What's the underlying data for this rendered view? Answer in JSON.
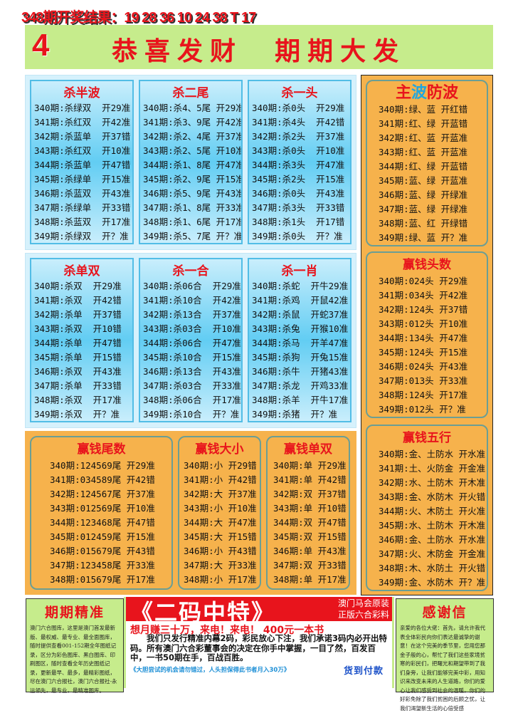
{
  "header": {
    "result_line": "348期开奖结果：19 28 36 10 24 38 T 17"
  },
  "banner": {
    "number": "4",
    "title": "恭喜发财  期期大发"
  },
  "colors": {
    "red": "#e8141c",
    "blue_panel": "#62cdf3",
    "orange": "#f6b24c",
    "green": "#c6ec8c",
    "title_blue": "#1fa6e0"
  },
  "blue_sections": [
    {
      "panels": [
        {
          "title": "杀半波",
          "rows": [
            "340期:杀绿双  开29准",
            "341期:杀红双  开42准",
            "342期:杀蓝单  开37错",
            "343期:杀红双  开10准",
            "344期:杀蓝单  开47错",
            "345期:杀绿单  开15准",
            "346期:杀蓝双  开43准",
            "347期:杀绿单  开33错",
            "348期:杀蓝双  开17准",
            "349期:杀绿双  开？准"
          ]
        },
        {
          "title": "杀二尾",
          "rows": [
            "340期:杀4、5尾 开29准",
            "341期:杀3、9尾 开42准",
            "342期:杀2、4尾 开37准",
            "343期:杀2、5尾 开10准",
            "344期:杀1、8尾 开47准",
            "345期:杀2、9尾 开15准",
            "346期:杀5、9尾 开43准",
            "347期:杀1、8尾 开33准",
            "348期:杀1、6尾 开17准",
            "349期:杀5、7尾 开？准"
          ]
        },
        {
          "title": "杀一头",
          "rows": [
            "340期:杀0头  开29准",
            "341期:杀4头  开42错",
            "342期:杀2头  开37准",
            "343期:杀0头  开10准",
            "344期:杀3头  开47准",
            "345期:杀2头  开15准",
            "346期:杀0头  开43准",
            "347期:杀3头  开33错",
            "348期:杀1头  开17错",
            "349期:杀0头  开？准"
          ]
        }
      ]
    },
    {
      "panels": [
        {
          "title": "杀单双",
          "rows": [
            "340期:杀双  开29准",
            "341期:杀双  开42错",
            "342期:杀单  开37错",
            "343期:杀双  开10错",
            "344期:杀单  开47错",
            "345期:杀单  开15错",
            "346期:杀双  开43准",
            "347期:杀单  开33错",
            "348期:杀双  开17准",
            "349期:杀双  开？准"
          ]
        },
        {
          "title": "杀一合",
          "rows": [
            "340期:杀06合  开29准",
            "341期:杀10合  开42准",
            "342期:杀13合  开37准",
            "343期:杀03合  开10准",
            "344期:杀06合  开47准",
            "345期:杀10合  开15准",
            "346期:杀13合  开43准",
            "347期:杀03合  开33准",
            "348期:杀06合  开17准",
            "349期:杀10合  开？准"
          ]
        },
        {
          "title": "杀一肖",
          "rows": [
            "340期:杀蛇  开牛29准",
            "341期:杀鸡  开鼠42准",
            "342期:杀鼠  开蛇37准",
            "343期:杀兔  开猴10准",
            "344期:杀马  开羊47准",
            "345期:杀狗  开兔15准",
            "346期:杀牛  开猪43准",
            "347期:杀龙  开鸡33准",
            "348期:杀羊  开牛17准",
            "349期:杀猪  开？准"
          ]
        }
      ]
    }
  ],
  "orange_section": {
    "panels": [
      {
        "title": "赢钱尾数",
        "rows": [
          "340期:124569尾 开29准",
          "341期:034589尾 开42错",
          "342期:124567尾 开37准",
          "343期:012569尾 开10准",
          "344期:123468尾 开47错",
          "345期:012459尾 开15准",
          "346期:015679尾 开43错",
          "347期:123458尾 开33准",
          "348期:015679尾 开17准",
          "349期:134567尾 开？准"
        ]
      },
      {
        "title": "赢钱大小",
        "rows": [
          "340期:小 开29错",
          "341期:小 开42错",
          "342期:大 开37准",
          "343期:小 开10准",
          "344期:大 开47准",
          "345期:大 开15错",
          "346期:小 开43错",
          "347期:大 开33准",
          "348期:小 开17准",
          "349期:小 开？准"
        ]
      },
      {
        "title": "赢钱单双",
        "rows": [
          "340期:单 开29准",
          "341期:单 开42错",
          "342期:双 开37错",
          "343期:单 开10错",
          "344期:双 开47错",
          "345期:双 开15错",
          "346期:单 开43准",
          "347期:双 开33错",
          "348期:单 开17准",
          "349期:单 开？准"
        ]
      }
    ]
  },
  "right_column": {
    "panels": [
      {
        "title_parts": [
          "主",
          "波",
          "防波"
        ],
        "rows": [
          "340期:绿、蓝 开红错",
          "341期:红、绿 开蓝错",
          "342期:红、蓝 开蓝准",
          "343期:红、蓝 开蓝准",
          "344期:红、绿 开蓝错",
          "345期:蓝、绿 开蓝准",
          "346期:蓝、绿 开绿准",
          "347期:蓝、绿 开绿准",
          "348期:蓝、红 开绿错",
          "349期:绿、蓝 开？准"
        ]
      },
      {
        "title": "赢钱头数",
        "rows": [
          "340期:024头 开29准",
          "341期:034头 开42准",
          "342期:124头 开37错",
          "343期:012头 开10准",
          "344期:134头 开47准",
          "345期:124头 开15准",
          "346期:024头 开43准",
          "347期:013头 开33准",
          "348期:124头 开17准",
          "349期:012头 开？准"
        ]
      },
      {
        "title": "赢钱五行",
        "rows": [
          "340期:金、土防水 开水准",
          "341期:土、火防金 开金准",
          "342期:水、土防木 开木准",
          "343期:金、水防木 开火错",
          "344期:火、木防土 开火准",
          "345期:水、土防木 开木准",
          "346期:金、土防水 开水准",
          "347期:火、木防金 开金准",
          "348期:木、水防土 开火错",
          "349期:金、水防木 开？准"
        ]
      }
    ]
  },
  "bottom": {
    "left": {
      "title": "期期精准",
      "body": "澳门六合图库，这里是澳门首发最新版、最权威、最专业、最全面图库，随时提供查看001-152期全年图纸记录，区分为彩色图库、黑白图库、印刷图区，随时查看全年历史图纸记录，更新最早、最多，最精彩图纸，尽在澳门六合报社，澳门六合报社-永远领先，最专业，最精准图库。"
    },
    "middle": {
      "headline": "《二码中特》",
      "sub1": "澳门马会原装",
      "sub2": "正版六合彩料",
      "slogan": "想月赚三十万，来电！来电！ 400元一本书",
      "paragraph": "我们只发行精准内幕2码，彩民放心下注，我们承诺3码内必开出特码。所有澳门六合彩董事会的决定在你手中掌握，一目了然，百发百中，一书50期在手，百战百胜。",
      "footer": "《大胆尝试的机会请勿错过，人头担保得此书者月入30万》",
      "payment": "货到付款"
    },
    "right": {
      "title": "感谢信",
      "body": "亲爱的各位大佬：首先，请允许我代表全体彩民向你们表达最诚挚的谢意！在这个完美的季节里，您用您那金子般的心，帮忙了我们这些家境贫寒的彩民们，把曙光和期望带到了我们身旁，让我们能够完美中彩，用知识来改变未来的人生道路，你们的爱心让我们感受到社会的温暖，你们的好彩免除了我们贫困的后顾之忧，让我们渴望新生活的心倍受感"
    }
  }
}
